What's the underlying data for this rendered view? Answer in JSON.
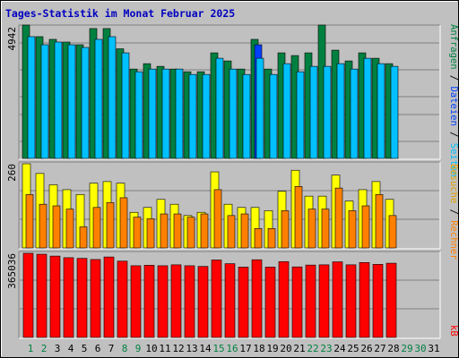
{
  "title": "Tages-Statistik im Monat Februar 2025",
  "colors": {
    "frame": "#c0c0c0",
    "plot_bg": "#c0c0c0",
    "title": "#0000c0",
    "hits": "#008040",
    "files": "#00c0ff",
    "pages": "#0040ff",
    "visits": "#ffff00",
    "sites": "#ff8000",
    "kbytes": "#ff0000",
    "weekend_label": "#008040",
    "weekday_label": "#000000",
    "separator": "#000000"
  },
  "axes": {
    "top_max_label": "4942",
    "middle_max_label": "260",
    "bottom_max_label": "365036"
  },
  "legend": {
    "top": {
      "anfragen": "Anfragen",
      "slash1": " / ",
      "dateien": "Dateien",
      "slash2": " / ",
      "seiten": "Seiten"
    },
    "middle": {
      "besuche": "Besuche",
      "slash": " / ",
      "rechner": "Rechner"
    },
    "bottom": {
      "kb": "kB"
    }
  },
  "chart_data": {
    "type": "bar",
    "title": "Tages-Statistik im Monat Februar 2025",
    "categories": [
      "1",
      "2",
      "3",
      "4",
      "5",
      "6",
      "7",
      "8",
      "9",
      "10",
      "11",
      "12",
      "13",
      "14",
      "15",
      "16",
      "17",
      "18",
      "19",
      "20",
      "21",
      "22",
      "23",
      "24",
      "25",
      "26",
      "27",
      "28",
      "29",
      "30",
      "31"
    ],
    "weekend_days": [
      1,
      2,
      8,
      9,
      15,
      16,
      22,
      23,
      29,
      30
    ],
    "panels": [
      {
        "name": "top",
        "max_label": "4942",
        "ylim": [
          0,
          4942
        ],
        "series": [
          {
            "name": "Anfragen",
            "values": [
              4942,
              4512,
              4412,
              4312,
              4212,
              4812,
              4812,
              4062,
              3312,
              3512,
              3412,
              3312,
              3212,
              3212,
              3912,
              3612,
              3312,
              4412,
              3312,
              3912,
              3812,
              3912,
              4942,
              4012,
              3612,
              3912,
              3712,
              3512,
              0,
              0,
              0
            ]
          },
          {
            "name": "Dateien",
            "values": [
              4512,
              4212,
              4312,
              4212,
              4112,
              4412,
              4512,
              3912,
              3212,
              3312,
              3312,
              3312,
              3112,
              3112,
              3712,
              3312,
              3112,
              3712,
              3112,
              3512,
              3212,
              3412,
              3412,
              3512,
              3312,
              3712,
              3512,
              3412,
              0,
              0,
              0
            ]
          },
          {
            "name": "Seiten",
            "values": [
              0,
              0,
              0,
              0,
              0,
              0,
              0,
              0,
              0,
              0,
              0,
              0,
              0,
              0,
              0,
              0,
              0,
              4212,
              0,
              0,
              0,
              0,
              0,
              0,
              0,
              0,
              0,
              0,
              0,
              0,
              0
            ]
          }
        ]
      },
      {
        "name": "middle",
        "max_label": "260",
        "ylim": [
          0,
          260
        ],
        "series": [
          {
            "name": "Besuche",
            "values": [
              260,
              230,
              195,
              180,
              165,
              200,
              205,
              200,
              110,
              125,
              150,
              135,
              100,
              110,
              235,
              135,
              125,
              125,
              115,
              175,
              240,
              160,
              160,
              225,
              145,
              180,
              205,
              150,
              0,
              0,
              0
            ]
          },
          {
            "name": "Rechner",
            "values": [
              165,
              135,
              130,
              120,
              65,
              125,
              140,
              155,
              95,
              90,
              105,
              105,
              95,
              105,
              180,
              100,
              105,
              60,
              60,
              115,
              190,
              120,
              120,
              185,
              115,
              130,
              165,
              100,
              0,
              0,
              0
            ]
          }
        ]
      },
      {
        "name": "bottom",
        "max_label": "365036",
        "ylim": [
          0,
          365036
        ],
        "series": [
          {
            "name": "kB",
            "values": [
              365036,
              361000,
              353000,
              346000,
              343000,
              338000,
              349000,
              331000,
              311000,
              313000,
              311000,
              315000,
              311000,
              308000,
              336000,
              320000,
              305000,
              337000,
              305000,
              329000,
              306000,
              314000,
              315000,
              328000,
              315000,
              325000,
              317000,
              322000,
              0,
              0,
              0
            ]
          }
        ]
      }
    ]
  }
}
